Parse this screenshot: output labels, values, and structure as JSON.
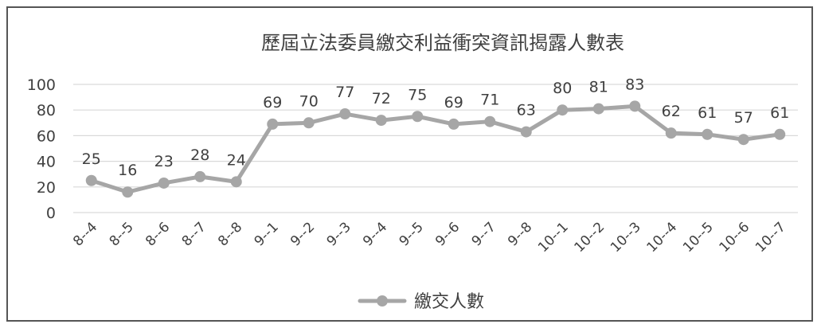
{
  "chart_data": {
    "type": "line",
    "title": "歷屆立法委員繳交利益衝突資訊揭露人數表",
    "xlabel": "",
    "ylabel": "",
    "categories": [
      "8--4",
      "8--5",
      "8--6",
      "8--7",
      "8--8",
      "9--1",
      "9--2",
      "9--3",
      "9--4",
      "9--5",
      "9--6",
      "9--7",
      "9--8",
      "10--1",
      "10--2",
      "10--3",
      "10--4",
      "10--5",
      "10--6",
      "10--7"
    ],
    "series": [
      {
        "name": "繳交人數",
        "values": [
          25,
          16,
          23,
          28,
          24,
          69,
          70,
          77,
          72,
          75,
          69,
          71,
          63,
          80,
          81,
          83,
          62,
          61,
          57,
          61
        ],
        "color": "#a6a6a6"
      }
    ],
    "ylim": [
      0,
      100
    ],
    "yticks": [
      0,
      20,
      40,
      60,
      80,
      100
    ],
    "grid": true,
    "legend_position": "bottom",
    "data_labels": true
  }
}
